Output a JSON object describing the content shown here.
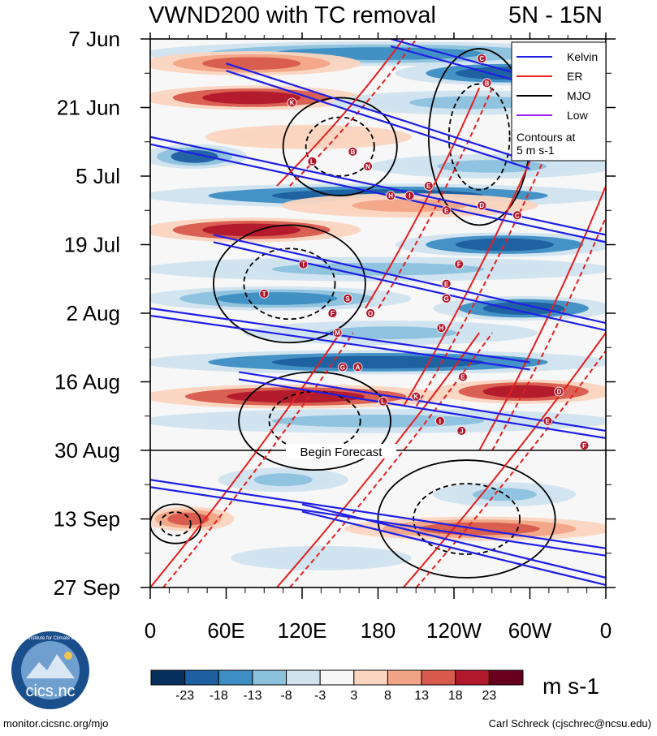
{
  "chart_data": {
    "type": "heatmap",
    "title": "VWND200 with TC removal",
    "region": "5N - 15N",
    "x_tick_labels": [
      "0",
      "60E",
      "120E",
      "180",
      "120W",
      "60W",
      "0"
    ],
    "y_tick_labels": [
      "7 Jun",
      "21 Jun",
      "5 Jul",
      "19 Jul",
      "2 Aug",
      "16 Aug",
      "30 Aug",
      "13 Sep",
      "27 Sep"
    ],
    "x_range_deg": [
      0,
      360
    ],
    "y_range_days": [
      0,
      112
    ],
    "forecast_start_day": 84,
    "forecast_label": "Begin Forecast",
    "legend": {
      "entries": [
        {
          "label": "Kelvin",
          "color": "#1f1fe6"
        },
        {
          "label": "ER",
          "color": "#e61f1f"
        },
        {
          "label": "MJO",
          "color": "#000000"
        },
        {
          "label": "Low",
          "color": "#a020f0"
        }
      ],
      "note": [
        "Contours at",
        "5 m s-1"
      ]
    },
    "colorbar": {
      "labels": [
        "-23",
        "-18",
        "-13",
        "-8",
        "-3",
        "3",
        "8",
        "13",
        "18",
        "23"
      ],
      "colors": [
        "#08305e",
        "#1d5fa0",
        "#3d8ec3",
        "#8cc1dd",
        "#cfe3ef",
        "#f7f7f7",
        "#fbd5c0",
        "#f1a586",
        "#d75a4c",
        "#b2182b",
        "#67001f"
      ],
      "unit": "m s-1"
    },
    "bands": [
      {
        "day": 3,
        "lon0": 0,
        "lon1": 360,
        "value": -15
      },
      {
        "day": 5,
        "lon0": 0,
        "lon1": 160,
        "value": 14
      },
      {
        "day": 7,
        "lon0": 200,
        "lon1": 360,
        "value": -22
      },
      {
        "day": 12,
        "lon0": 0,
        "lon1": 160,
        "value": 22
      },
      {
        "day": 13,
        "lon0": 150,
        "lon1": 360,
        "value": -10
      },
      {
        "day": 20,
        "lon0": 50,
        "lon1": 200,
        "value": 8
      },
      {
        "day": 24,
        "lon0": 0,
        "lon1": 70,
        "value": -18
      },
      {
        "day": 26,
        "lon0": 180,
        "lon1": 360,
        "value": -8
      },
      {
        "day": 32,
        "lon0": 0,
        "lon1": 360,
        "value": -22
      },
      {
        "day": 34,
        "lon0": 110,
        "lon1": 300,
        "value": 10
      },
      {
        "day": 39,
        "lon0": 0,
        "lon1": 160,
        "value": 22
      },
      {
        "day": 42,
        "lon0": 200,
        "lon1": 360,
        "value": -22
      },
      {
        "day": 47,
        "lon0": 0,
        "lon1": 360,
        "value": -8
      },
      {
        "day": 53,
        "lon0": 0,
        "lon1": 200,
        "value": -16
      },
      {
        "day": 55,
        "lon0": 230,
        "lon1": 360,
        "value": -20
      },
      {
        "day": 60,
        "lon0": 80,
        "lon1": 300,
        "value": -10
      },
      {
        "day": 66,
        "lon0": 0,
        "lon1": 360,
        "value": -20
      },
      {
        "day": 73,
        "lon0": 0,
        "lon1": 230,
        "value": 22
      },
      {
        "day": 72,
        "lon0": 230,
        "lon1": 360,
        "value": 20
      },
      {
        "day": 78,
        "lon0": 0,
        "lon1": 360,
        "value": -8
      },
      {
        "day": 90,
        "lon0": 60,
        "lon1": 150,
        "value": -10
      },
      {
        "day": 93,
        "lon0": 230,
        "lon1": 330,
        "value": -8
      },
      {
        "day": 98,
        "lon0": 0,
        "lon1": 60,
        "value": 14
      },
      {
        "day": 100,
        "lon0": 160,
        "lon1": 360,
        "value": 15
      },
      {
        "day": 106,
        "lon0": 70,
        "lon1": 200,
        "value": -6
      }
    ],
    "tropical_cyclones": [
      {
        "letter": "C",
        "lon": 262,
        "day": 4
      },
      {
        "letter": "B",
        "lon": 266,
        "day": 9
      },
      {
        "letter": "K",
        "lon": 112,
        "day": 13
      },
      {
        "letter": "B",
        "lon": 160,
        "day": 23
      },
      {
        "letter": "L",
        "lon": 128,
        "day": 25
      },
      {
        "letter": "N",
        "lon": 172,
        "day": 26
      },
      {
        "letter": "H",
        "lon": 190,
        "day": 32
      },
      {
        "letter": "I",
        "lon": 205,
        "day": 32
      },
      {
        "letter": "E",
        "lon": 220,
        "day": 30
      },
      {
        "letter": "E",
        "lon": 234,
        "day": 35
      },
      {
        "letter": "D",
        "lon": 262,
        "day": 34
      },
      {
        "letter": "C",
        "lon": 290,
        "day": 36
      },
      {
        "letter": "T",
        "lon": 121,
        "day": 46
      },
      {
        "letter": "F",
        "lon": 244,
        "day": 46
      },
      {
        "letter": "E",
        "lon": 234,
        "day": 50
      },
      {
        "letter": "T",
        "lon": 90,
        "day": 52
      },
      {
        "letter": "G",
        "lon": 234,
        "day": 53
      },
      {
        "letter": "S",
        "lon": 156,
        "day": 53
      },
      {
        "letter": "F",
        "lon": 144,
        "day": 56
      },
      {
        "letter": "O",
        "lon": 174,
        "day": 56
      },
      {
        "letter": "M",
        "lon": 148,
        "day": 60
      },
      {
        "letter": "H",
        "lon": 230,
        "day": 59
      },
      {
        "letter": "G",
        "lon": 152,
        "day": 67
      },
      {
        "letter": "A",
        "lon": 164,
        "day": 67
      },
      {
        "letter": "E",
        "lon": 247,
        "day": 69
      },
      {
        "letter": "D",
        "lon": 323,
        "day": 72
      },
      {
        "letter": "L",
        "lon": 184,
        "day": 74
      },
      {
        "letter": "K",
        "lon": 210,
        "day": 73
      },
      {
        "letter": "E",
        "lon": 314,
        "day": 78
      },
      {
        "letter": "I",
        "lon": 229,
        "day": 78
      },
      {
        "letter": "J",
        "lon": 246,
        "day": 80
      },
      {
        "letter": "F",
        "lon": 343,
        "day": 83
      }
    ],
    "kelvin_contours": [
      {
        "lon0": 190,
        "day0": 0,
        "lon1": 360,
        "day1": 12
      },
      {
        "lon0": 60,
        "day0": 5,
        "lon1": 300,
        "day1": 25
      },
      {
        "lon0": 0,
        "day0": 20,
        "lon1": 360,
        "day1": 40
      },
      {
        "lon0": 50,
        "day0": 40,
        "lon1": 360,
        "day1": 58
      },
      {
        "lon0": 0,
        "day0": 55,
        "lon1": 300,
        "day1": 66
      },
      {
        "lon0": 70,
        "day0": 68,
        "lon1": 360,
        "day1": 80
      },
      {
        "lon0": 0,
        "day0": 90,
        "lon1": 360,
        "day1": 104
      },
      {
        "lon0": 120,
        "day0": 95,
        "lon1": 360,
        "day1": 110
      }
    ],
    "er_contours": [
      {
        "lon0": 100,
        "day0": 30,
        "lon1": 200,
        "day1": 0
      },
      {
        "lon0": 170,
        "day0": 55,
        "lon1": 260,
        "day1": 10
      },
      {
        "lon0": 200,
        "day0": 75,
        "lon1": 300,
        "day1": 25
      },
      {
        "lon0": 0,
        "day0": 112,
        "lon1": 150,
        "day1": 60
      },
      {
        "lon0": 100,
        "day0": 112,
        "lon1": 260,
        "day1": 60
      },
      {
        "lon0": 200,
        "day0": 112,
        "lon1": 360,
        "day1": 60
      },
      {
        "lon0": 260,
        "day0": 84,
        "lon1": 360,
        "day1": 30
      }
    ],
    "mjo_contours": [
      {
        "lon": 150,
        "day": 22,
        "rx": 45,
        "ry": 10
      },
      {
        "lon": 110,
        "day": 50,
        "rx": 60,
        "ry": 12
      },
      {
        "lon": 260,
        "day": 20,
        "rx": 40,
        "ry": 18
      },
      {
        "lon": 130,
        "day": 78,
        "rx": 60,
        "ry": 10
      },
      {
        "lon": 250,
        "day": 98,
        "rx": 70,
        "ry": 12
      },
      {
        "lon": 20,
        "day": 99,
        "rx": 20,
        "ry": 4
      }
    ]
  },
  "footer": {
    "logo_text": "cics.nc",
    "logo_ring_text": "Cooperative Institute for Climate and Satellites",
    "url": "monitor.cicsnc.org/mjo",
    "author": "Carl Schreck (cjschrec@ncsu.edu)"
  }
}
